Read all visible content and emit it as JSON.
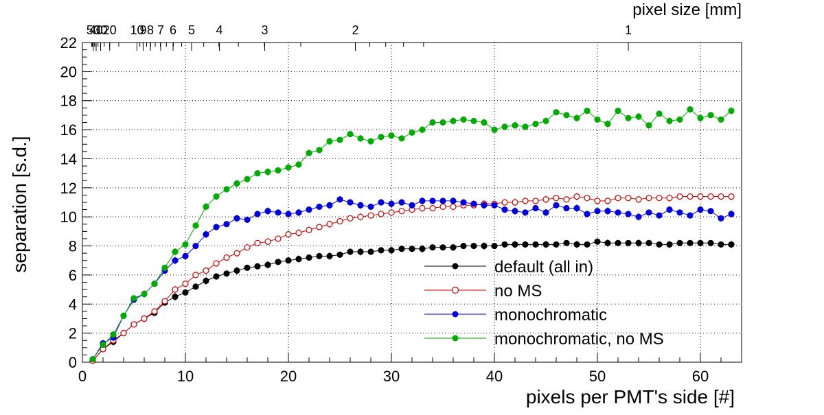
{
  "chart_data": {
    "type": "scatter",
    "title": "",
    "xlabel": "pixels per PMT's side [#]",
    "ylabel": "separation [s.d.]",
    "secondary_axis_label": "pixel size [mm]",
    "xlim": [
      0,
      64
    ],
    "ylim": [
      0,
      22
    ],
    "grid": true,
    "legend_position": "bottom-right",
    "x_ticks": [
      0,
      10,
      20,
      30,
      40,
      50,
      60
    ],
    "y_ticks": [
      0,
      2,
      4,
      6,
      8,
      10,
      12,
      14,
      16,
      18,
      20,
      22
    ],
    "top_ticks": [
      {
        "label": "1",
        "x": 53
      },
      {
        "label": "2",
        "x": 26.5
      },
      {
        "label": "3",
        "x": 17.7
      },
      {
        "label": "4",
        "x": 13.3
      },
      {
        "label": "5",
        "x": 10.6
      },
      {
        "label": "6",
        "x": 8.8
      },
      {
        "label": "7",
        "x": 7.6
      },
      {
        "label": "8",
        "x": 6.6
      },
      {
        "label": "9",
        "x": 5.9
      },
      {
        "label": "10",
        "x": 5.3
      },
      {
        "label": "20",
        "x": 2.65
      },
      {
        "label": "30",
        "x": 1.77
      },
      {
        "label": "40",
        "x": 1.33
      },
      {
        "label": "50",
        "x": 1.06
      }
    ],
    "x": [
      1,
      2,
      3,
      4,
      5,
      6,
      7,
      8,
      9,
      10,
      11,
      12,
      13,
      14,
      15,
      16,
      17,
      18,
      19,
      20,
      21,
      22,
      23,
      24,
      25,
      26,
      27,
      28,
      29,
      30,
      31,
      32,
      33,
      34,
      35,
      36,
      37,
      38,
      39,
      40,
      41,
      42,
      43,
      44,
      45,
      46,
      47,
      48,
      49,
      50,
      51,
      52,
      53,
      54,
      55,
      56,
      57,
      58,
      59,
      60,
      61,
      62,
      63
    ],
    "series": [
      {
        "name": "default (all in)",
        "color": "#000000",
        "marker": "filled",
        "values": [
          0.1,
          0.9,
          1.4,
          2.0,
          2.6,
          3.0,
          3.4,
          4.1,
          4.5,
          4.8,
          5.2,
          5.6,
          5.9,
          6.1,
          6.3,
          6.5,
          6.6,
          6.7,
          6.9,
          7.0,
          7.1,
          7.2,
          7.3,
          7.3,
          7.4,
          7.6,
          7.6,
          7.6,
          7.7,
          7.7,
          7.8,
          7.8,
          7.8,
          7.9,
          7.9,
          7.9,
          8.0,
          8.0,
          8.0,
          8.0,
          8.1,
          8.1,
          8.1,
          8.1,
          8.1,
          8.1,
          8.2,
          8.1,
          8.1,
          8.3,
          8.2,
          8.2,
          8.2,
          8.2,
          8.2,
          8.1,
          8.1,
          8.2,
          8.2,
          8.2,
          8.2,
          8.1,
          8.1
        ]
      },
      {
        "name": "no MS",
        "color": "#cc0000",
        "marker": "open",
        "values": [
          0.1,
          0.9,
          1.5,
          2.0,
          2.6,
          3.0,
          3.5,
          4.2,
          5.0,
          5.4,
          6.0,
          6.3,
          6.8,
          7.2,
          7.5,
          7.9,
          8.2,
          8.3,
          8.5,
          8.8,
          8.9,
          9.1,
          9.3,
          9.5,
          9.7,
          9.9,
          10.0,
          10.1,
          10.2,
          10.3,
          10.4,
          10.5,
          10.6,
          10.6,
          10.7,
          10.7,
          10.8,
          10.8,
          10.9,
          10.9,
          11.0,
          11.0,
          11.1,
          11.1,
          11.2,
          11.3,
          11.2,
          11.4,
          11.3,
          11.1,
          11.1,
          11.3,
          11.3,
          11.2,
          11.3,
          11.3,
          11.3,
          11.4,
          11.4,
          11.4,
          11.4,
          11.4,
          11.4
        ]
      },
      {
        "name": "monochromatic",
        "color": "#0000dd",
        "marker": "filled",
        "values": [
          0.2,
          1.3,
          1.7,
          3.2,
          4.3,
          4.7,
          5.4,
          6.3,
          7.0,
          7.3,
          8.0,
          8.8,
          9.3,
          9.5,
          9.9,
          9.8,
          10.2,
          10.4,
          10.3,
          10.2,
          10.3,
          10.5,
          10.7,
          10.8,
          11.2,
          11.0,
          10.8,
          10.7,
          11.0,
          10.9,
          11.0,
          10.8,
          11.1,
          11.1,
          11.1,
          11.1,
          11.0,
          10.9,
          10.8,
          10.8,
          10.5,
          10.4,
          10.3,
          10.6,
          10.3,
          10.8,
          10.6,
          10.6,
          10.2,
          10.4,
          10.4,
          10.3,
          10.2,
          10.0,
          10.3,
          10.1,
          10.5,
          10.3,
          10.1,
          10.5,
          10.4,
          9.9,
          10.2
        ]
      },
      {
        "name": "monochromatic, no MS",
        "color": "#00aa00",
        "marker": "filled",
        "values": [
          0.2,
          1.2,
          1.9,
          3.2,
          4.4,
          4.7,
          5.4,
          6.5,
          7.6,
          8.1,
          9.4,
          10.7,
          11.4,
          11.9,
          12.3,
          12.6,
          13.0,
          13.1,
          13.2,
          13.4,
          13.6,
          14.4,
          14.6,
          15.2,
          15.3,
          15.7,
          15.4,
          15.2,
          15.5,
          15.6,
          15.4,
          15.8,
          16.0,
          16.5,
          16.5,
          16.6,
          16.7,
          16.6,
          16.5,
          16.0,
          16.2,
          16.3,
          16.2,
          16.4,
          16.6,
          17.2,
          17.0,
          16.8,
          17.3,
          16.7,
          16.4,
          17.3,
          16.8,
          16.9,
          16.3,
          17.1,
          16.6,
          16.7,
          17.4,
          16.8,
          17.0,
          16.7,
          17.3
        ]
      }
    ]
  }
}
